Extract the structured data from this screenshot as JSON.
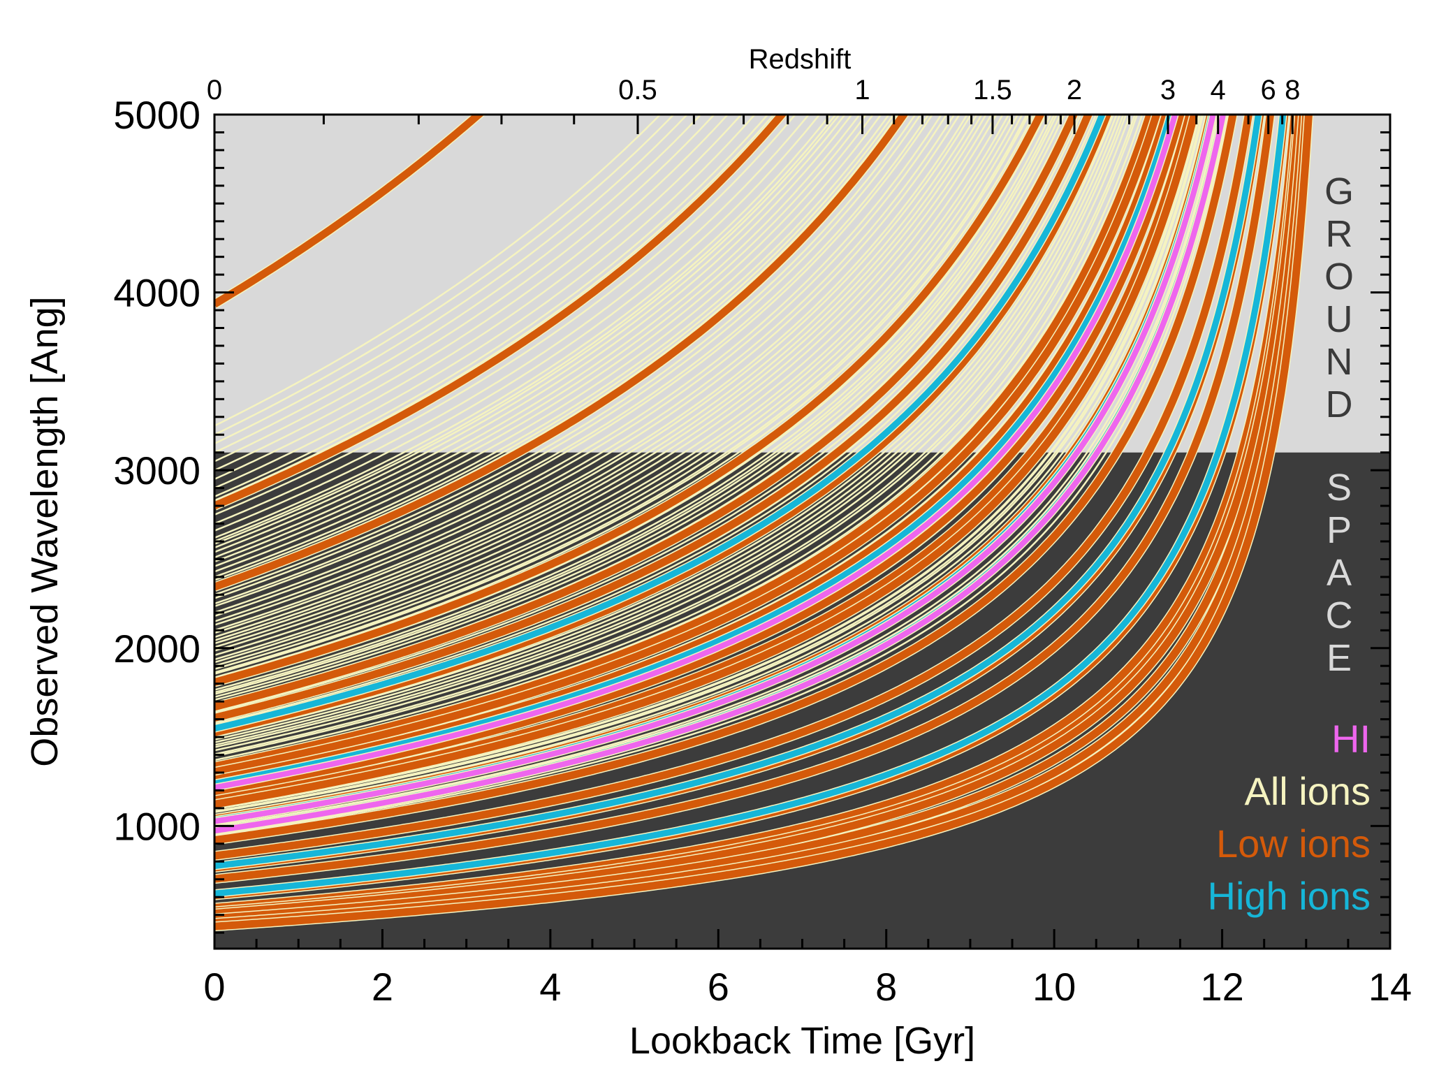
{
  "chart_data": {
    "type": "line",
    "title": "",
    "xlabel": "Lookback Time [Gyr]",
    "ylabel": "Observed Wavelength [Ang]",
    "top_axis_label": "Redshift",
    "xlim": [
      0,
      14
    ],
    "ylim": [
      310,
      5000
    ],
    "x_ticks": [
      0,
      2,
      4,
      6,
      8,
      10,
      12,
      14
    ],
    "y_ticks": [
      1000,
      2000,
      3000,
      4000,
      5000
    ],
    "redshift_ticks": [
      {
        "z": 0,
        "label": "0"
      },
      {
        "z": 0.5,
        "label": "0.5"
      },
      {
        "z": 1,
        "label": "1"
      },
      {
        "z": 1.5,
        "label": "1.5"
      },
      {
        "z": 2,
        "label": "2"
      },
      {
        "z": 3,
        "label": "3"
      },
      {
        "z": 4,
        "label": "4"
      },
      {
        "z": 6,
        "label": "6"
      },
      {
        "z": 8,
        "label": "8"
      }
    ],
    "regions": [
      {
        "name": "GROUND",
        "label": "GROUND",
        "y_range": [
          3100,
          5000
        ],
        "color": "#d9d9d9",
        "text_color": "#3a3a3a"
      },
      {
        "name": "SPACE",
        "label": "SPACE",
        "y_range": [
          310,
          3100
        ],
        "color": "#3c3c3c",
        "text_color": "#d9d9d9"
      }
    ],
    "formula": "observed_wavelength = rest_wavelength * (1 + z(lookback_time))",
    "legend_position": "bottom-right",
    "series": [
      {
        "name": "HI",
        "color": "#ee66ee",
        "rest_wavelengths": [
          1216,
          1026,
          973
        ]
      },
      {
        "name": "All ions",
        "color": "#f5f3c0",
        "rest_wavelengths": [
          912,
          949,
          972,
          1000,
          1031,
          1037,
          1048,
          1063,
          1077,
          1083,
          1094,
          1097,
          1122,
          1134,
          1143,
          1152,
          1176,
          1188,
          1193,
          1200,
          1239,
          1250,
          1254,
          1263,
          1277,
          1304,
          1317,
          1328,
          1335,
          1347,
          1355,
          1370,
          1393,
          1403,
          1425,
          1443,
          1455,
          1470,
          1485,
          1500,
          1520,
          1526,
          1535,
          1548,
          1560,
          1575,
          1590,
          1608,
          1625,
          1640,
          1657,
          1670,
          1690,
          1709,
          1725,
          1741,
          1751,
          1765,
          1786,
          1808,
          1820,
          1835,
          1855,
          1863,
          1882,
          1900,
          1920,
          1936,
          1960,
          1985,
          2005,
          2026,
          2043,
          2062,
          2085,
          2100,
          2130,
          2150,
          2180,
          2200,
          2235,
          2250,
          2280,
          2300,
          2325,
          2344,
          2367,
          2382,
          2400,
          2430,
          2460,
          2486,
          2510,
          2540,
          2565,
          2586,
          2600,
          2620,
          2660,
          2700,
          2750,
          2800,
          2830,
          2852,
          2900,
          2950,
          3000,
          3050,
          3100,
          3150,
          3200,
          3250
        ]
      },
      {
        "name": "Low ions",
        "color": "#d45a0a",
        "rest_wavelengths": [
          2800,
          2344,
          1808,
          1670,
          1608,
          1526,
          1335,
          1304,
          1260,
          1206,
          1190,
          1145,
          1122,
          1039,
          977,
          920,
          832,
          765,
          702,
          610,
          540,
          520,
          508,
          480,
          455,
          435,
          3934
        ]
      },
      {
        "name": "High ions",
        "color": "#16b6d8",
        "rest_wavelengths": [
          1548,
          1238,
          1032,
          977,
          775,
          620
        ]
      }
    ],
    "legend": [
      "HI",
      "All ions",
      "Low ions",
      "High ions"
    ]
  }
}
